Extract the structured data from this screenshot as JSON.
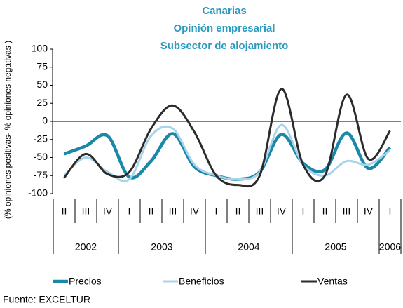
{
  "chart_data": {
    "type": "line",
    "title": [
      "Canarias",
      "Opinión empresarial",
      "Subsector de alojamiento"
    ],
    "ylabel": "(% opiniones positivas- % opiniones negativas )",
    "categories": [
      "II",
      "III",
      "IV",
      "I",
      "II",
      "III",
      "IV",
      "I",
      "II",
      "III",
      "IV",
      "I",
      "II",
      "III",
      "IV",
      "I"
    ],
    "x_groups": [
      {
        "label": "2002",
        "count": 3
      },
      {
        "label": "2003",
        "count": 4
      },
      {
        "label": "2004",
        "count": 4
      },
      {
        "label": "2005",
        "count": 4
      },
      {
        "label": "2006",
        "count": 1
      }
    ],
    "series": [
      {
        "name": "Precios",
        "color": "#1a88a8",
        "values": [
          -45,
          -34,
          -20,
          -77,
          -55,
          -17,
          -63,
          -75,
          -80,
          -70,
          -18,
          -58,
          -67,
          -16,
          -65,
          -36
        ]
      },
      {
        "name": "Beneficios",
        "color": "#a8d3e8",
        "values": [
          -75,
          -50,
          -70,
          -80,
          -20,
          -10,
          -60,
          -75,
          -80,
          -70,
          -5,
          -60,
          -75,
          -55,
          -60,
          -40
        ]
      },
      {
        "name": "Ventas",
        "color": "#2b2b2b",
        "values": [
          -78,
          -45,
          -73,
          -70,
          -10,
          22,
          -15,
          -75,
          -88,
          -75,
          45,
          -60,
          -75,
          37,
          -52,
          -13
        ]
      }
    ],
    "ylim": [
      -100,
      100
    ],
    "yticks": [
      100,
      75,
      50,
      25,
      0,
      -25,
      -50,
      -75,
      -100
    ],
    "legend": "bottom",
    "smooth": true,
    "source": "Fuente: EXCELTUR"
  }
}
